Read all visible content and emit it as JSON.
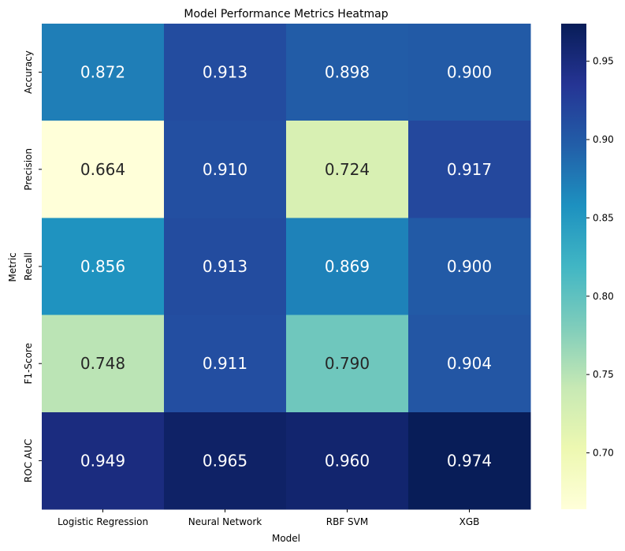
{
  "chart_data": {
    "type": "heatmap",
    "title": "Model Performance Metrics Heatmap",
    "xlabel": "Model",
    "ylabel": "Metric",
    "x_categories": [
      "Logistic Regression",
      "Neural Network",
      "RBF SVM",
      "XGB"
    ],
    "y_categories": [
      "Accuracy",
      "Precision",
      "Recall",
      "F1-Score",
      "ROC AUC"
    ],
    "values": [
      [
        0.872,
        0.913,
        0.898,
        0.9
      ],
      [
        0.664,
        0.91,
        0.724,
        0.917
      ],
      [
        0.856,
        0.913,
        0.869,
        0.9
      ],
      [
        0.748,
        0.911,
        0.79,
        0.904
      ],
      [
        0.949,
        0.965,
        0.96,
        0.974
      ]
    ],
    "value_labels": [
      [
        "0.872",
        "0.913",
        "0.898",
        "0.900"
      ],
      [
        "0.664",
        "0.910",
        "0.724",
        "0.917"
      ],
      [
        "0.856",
        "0.913",
        "0.869",
        "0.900"
      ],
      [
        "0.748",
        "0.911",
        "0.790",
        "0.904"
      ],
      [
        "0.949",
        "0.965",
        "0.960",
        "0.974"
      ]
    ],
    "colormap": "YlGnBu",
    "vmin": 0.664,
    "vmax": 0.974,
    "colorbar": {
      "ticks": [
        0.7,
        0.75,
        0.8,
        0.85,
        0.9,
        0.95
      ],
      "tick_labels": [
        "0.70",
        "0.75",
        "0.80",
        "0.85",
        "0.90",
        "0.95"
      ]
    }
  }
}
